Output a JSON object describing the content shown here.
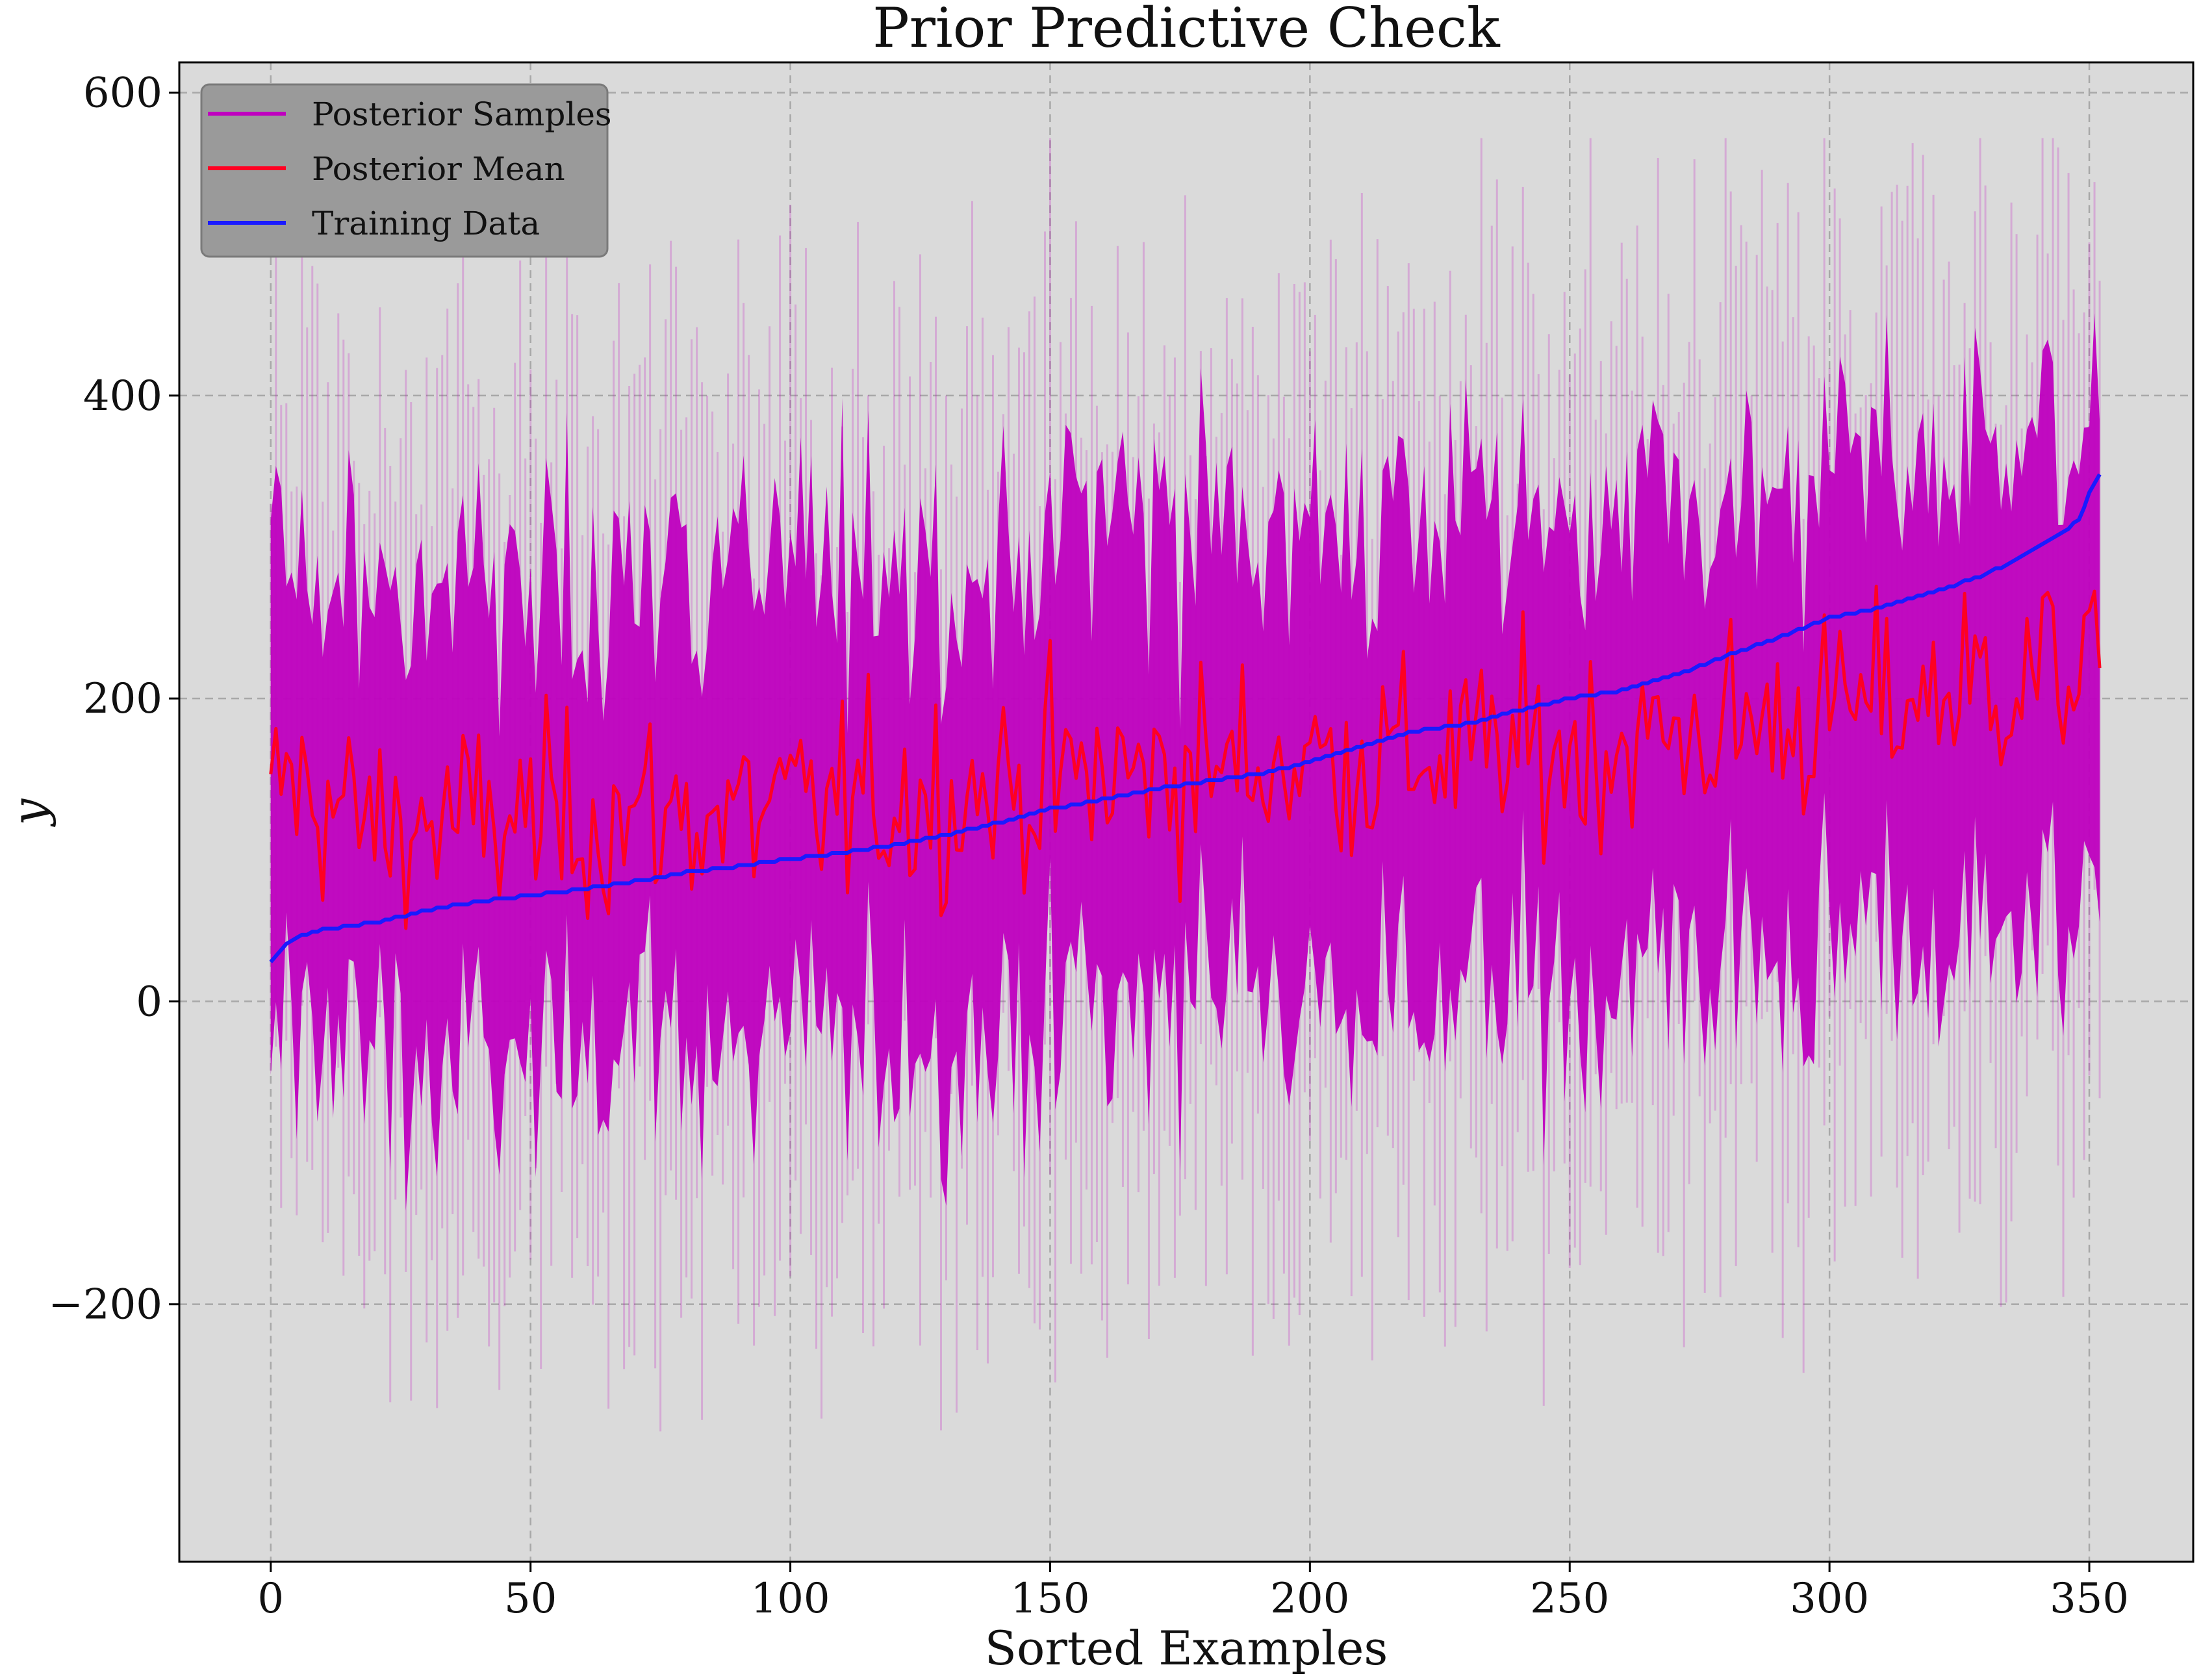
{
  "chart_data": {
    "type": "line",
    "title": "Prior Predictive Check",
    "xlabel": "Sorted Examples",
    "ylabel": "y",
    "xlim": [
      -17.6,
      370
    ],
    "ylim": [
      -370,
      620
    ],
    "xticks": [
      0,
      50,
      100,
      150,
      200,
      250,
      300,
      350
    ],
    "xtick_labels": [
      "0",
      "50",
      "100",
      "150",
      "200",
      "250",
      "300",
      "350"
    ],
    "yticks": [
      -200,
      0,
      200,
      400,
      600
    ],
    "ytick_labels": [
      "−200",
      "0",
      "200",
      "400",
      "600"
    ],
    "grid": true,
    "legend_position": "upper-left",
    "background_color": "#dadada",
    "series": [
      {
        "name": "Posterior Samples",
        "kind": "band",
        "color": "#bf00bf",
        "x_range": [
          0,
          352
        ],
        "typical_width_around_mean": 110,
        "extreme_min": -320,
        "extreme_max": 570
      },
      {
        "name": "Posterior Mean",
        "kind": "line",
        "color": "#ff0022",
        "x_range": [
          0,
          352
        ],
        "keypoints": [
          [
            0,
            150
          ],
          [
            20,
            115
          ],
          [
            50,
            120
          ],
          [
            100,
            125
          ],
          [
            150,
            145
          ],
          [
            200,
            160
          ],
          [
            250,
            165
          ],
          [
            300,
            190
          ],
          [
            330,
            210
          ],
          [
            352,
            225
          ]
        ],
        "noise_amplitude": 45
      },
      {
        "name": "Training Data",
        "kind": "line",
        "color": "#1a1aff",
        "x": [
          0,
          3,
          5,
          10,
          20,
          30,
          40,
          50,
          60,
          70,
          80,
          90,
          100,
          110,
          120,
          130,
          140,
          150,
          160,
          170,
          180,
          190,
          200,
          210,
          220,
          230,
          240,
          250,
          260,
          270,
          280,
          290,
          300,
          310,
          320,
          330,
          335,
          340,
          345,
          348,
          350,
          352
        ],
        "y": [
          25,
          38,
          42,
          47,
          52,
          60,
          66,
          70,
          74,
          79,
          85,
          89,
          94,
          98,
          103,
          110,
          118,
          127,
          133,
          140,
          145,
          150,
          158,
          168,
          178,
          183,
          192,
          200,
          205,
          215,
          228,
          240,
          253,
          260,
          270,
          282,
          290,
          300,
          310,
          318,
          335,
          348
        ]
      }
    ]
  }
}
